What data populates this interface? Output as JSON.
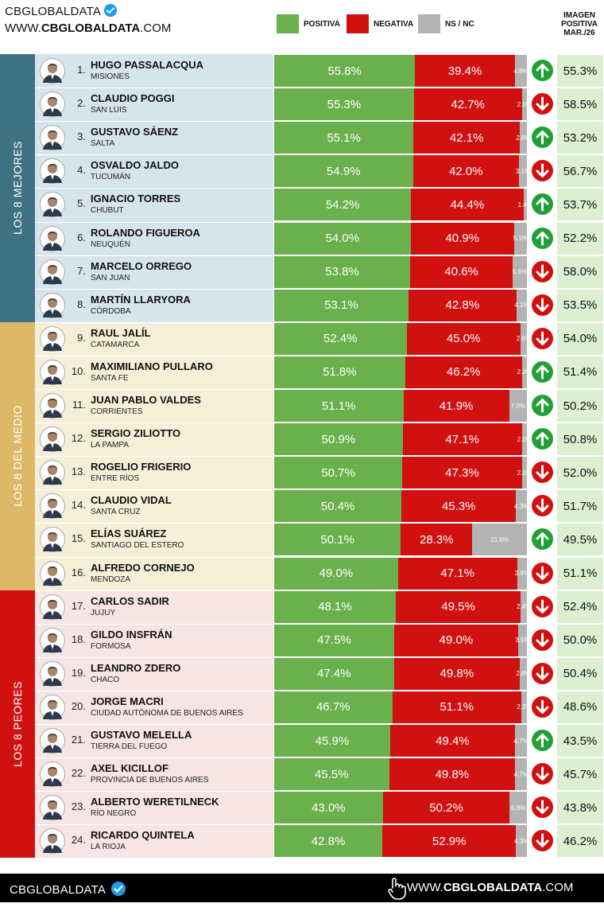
{
  "brand": {
    "name": "CBGLOBALDATA",
    "site_prefix": "WWW.",
    "site_bold": "CBGLOBALDATA",
    "site_suffix": ".COM"
  },
  "footer": {
    "name": "CBGLOBALDATA",
    "site_prefix": "WWW.",
    "site_bold": "CBGLOBALDATA",
    "site_suffix": ".COM"
  },
  "colors": {
    "positive": "#6ab04c",
    "negative": "#d11010",
    "nsnc": "#b3b3b3",
    "top_group": "#3e7282",
    "mid_group": "#ddb866",
    "bottom_group": "#d11010",
    "up": "#22a038",
    "down": "#d11010"
  },
  "chart_data": {
    "type": "bar",
    "stacked": true,
    "orientation": "horizontal",
    "legend": [
      "POSITIVA",
      "NEGATIVA",
      "NS / NC"
    ],
    "previous_header": [
      "IMAGEN",
      "POSITIVA",
      "MAR./26"
    ],
    "groups": [
      {
        "label": "LOS 8 MEJORES",
        "from": 1,
        "to": 8
      },
      {
        "label": "LOS 8 DEL MEDIO",
        "from": 9,
        "to": 16
      },
      {
        "label": "LOS 8 PEORES",
        "from": 17,
        "to": 24
      }
    ],
    "rows": [
      {
        "rank": "1.",
        "name": "HUGO PASSALACQUA",
        "province": "MISIONES",
        "positive": 55.8,
        "negative": 39.4,
        "nsnc": 4.8,
        "positive_label": "55.8%",
        "negative_label": "39.4%",
        "nsnc_label": "4.8%",
        "trend": "up",
        "previous": "55.3%"
      },
      {
        "rank": "2.",
        "name": "CLAUDIO POGGI",
        "province": "SAN LUIS",
        "positive": 55.3,
        "negative": 42.7,
        "nsnc": 2.0,
        "positive_label": "55.3%",
        "negative_label": "42.7%",
        "nsnc_label": "2.0%",
        "trend": "down",
        "previous": "58.5%"
      },
      {
        "rank": "3.",
        "name": "GUSTAVO SÁENZ",
        "province": "SALTA",
        "positive": 55.1,
        "negative": 42.1,
        "nsnc": 2.8,
        "positive_label": "55.1%",
        "negative_label": "42.1%",
        "nsnc_label": "2.8%",
        "trend": "up",
        "previous": "53.2%"
      },
      {
        "rank": "4.",
        "name": "OSVALDO JALDO",
        "province": "TUCUMÁN",
        "positive": 54.9,
        "negative": 42.0,
        "nsnc": 3.1,
        "positive_label": "54.9%",
        "negative_label": "42.0%",
        "nsnc_label": "3.1%",
        "trend": "down",
        "previous": "56.7%"
      },
      {
        "rank": "5.",
        "name": "IGNACIO TORRES",
        "province": "CHUBUT",
        "positive": 54.2,
        "negative": 44.4,
        "nsnc": 1.4,
        "positive_label": "54.2%",
        "negative_label": "44.4%",
        "nsnc_label": "1.4%",
        "trend": "up",
        "previous": "53.7%"
      },
      {
        "rank": "6.",
        "name": "ROLANDO FIGUEROA",
        "province": "NEUQUÉN",
        "positive": 54.0,
        "negative": 40.9,
        "nsnc": 5.1,
        "positive_label": "54.0%",
        "negative_label": "40.9%",
        "nsnc_label": "5.1%",
        "trend": "up",
        "previous": "52.2%"
      },
      {
        "rank": "7.",
        "name": "MARCELO ORREGO",
        "province": "SAN JUAN",
        "positive": 53.8,
        "negative": 40.6,
        "nsnc": 5.6,
        "positive_label": "53.8%",
        "negative_label": "40.6%",
        "nsnc_label": "5.6%",
        "trend": "down",
        "previous": "58.0%"
      },
      {
        "rank": "8.",
        "name": "MARTÍN LLARYORA",
        "province": "CÓRDOBA",
        "positive": 53.1,
        "negative": 42.8,
        "nsnc": 4.1,
        "positive_label": "53.1%",
        "negative_label": "42.8%",
        "nsnc_label": "4.1%",
        "trend": "down",
        "previous": "53.5%"
      },
      {
        "rank": "9.",
        "name": "RAUL JALÍL",
        "province": "CATAMARCA",
        "positive": 52.4,
        "negative": 45.0,
        "nsnc": 2.6,
        "positive_label": "52.4%",
        "negative_label": "45.0%",
        "nsnc_label": "2.6%",
        "trend": "down",
        "previous": "54.0%"
      },
      {
        "rank": "10.",
        "name": "MAXIMILIANO PULLARO",
        "province": "SANTA FE",
        "positive": 51.8,
        "negative": 46.2,
        "nsnc": 2.0,
        "positive_label": "51.8%",
        "negative_label": "46.2%",
        "nsnc_label": "2.0%",
        "trend": "up",
        "previous": "51.4%"
      },
      {
        "rank": "11.",
        "name": "JUAN PABLO VALDES",
        "province": "CORRIENTES",
        "positive": 51.1,
        "negative": 41.9,
        "nsnc": 7.0,
        "positive_label": "51.1%",
        "negative_label": "41.9%",
        "nsnc_label": "7.0%",
        "trend": "up",
        "previous": "50.2%"
      },
      {
        "rank": "12.",
        "name": "SERGIO ZILIOTTO",
        "province": "LA PAMPA",
        "positive": 50.9,
        "negative": 47.1,
        "nsnc": 2.0,
        "positive_label": "50.9%",
        "negative_label": "47.1%",
        "nsnc_label": "2.0%",
        "trend": "up",
        "previous": "50.8%"
      },
      {
        "rank": "13.",
        "name": "ROGELIO FRIGERIO",
        "province": "ENTRE RÍOS",
        "positive": 50.7,
        "negative": 47.3,
        "nsnc": 2.0,
        "positive_label": "50.7%",
        "negative_label": "47.3%",
        "nsnc_label": "2.0%",
        "trend": "down",
        "previous": "52.0%"
      },
      {
        "rank": "14.",
        "name": "CLAUDIO VIDAL",
        "province": "SANTA CRUZ",
        "positive": 50.4,
        "negative": 45.3,
        "nsnc": 4.3,
        "positive_label": "50.4%",
        "negative_label": "45.3%",
        "nsnc_label": "4.3%",
        "trend": "down",
        "previous": "51.7%"
      },
      {
        "rank": "15.",
        "name": "ELÍAS SUÁREZ",
        "province": "SANTIAGO DEL ESTERO",
        "positive": 50.1,
        "negative": 28.3,
        "nsnc": 21.6,
        "positive_label": "50.1%",
        "negative_label": "28.3%",
        "nsnc_label": "21.6%",
        "trend": "up",
        "previous": "49.5%"
      },
      {
        "rank": "16.",
        "name": "ALFREDO CORNEJO",
        "province": "MENDOZA",
        "positive": 49.0,
        "negative": 47.1,
        "nsnc": 3.9,
        "positive_label": "49.0%",
        "negative_label": "47.1%",
        "nsnc_label": "3.9%",
        "trend": "down",
        "previous": "51.1%"
      },
      {
        "rank": "17.",
        "name": "CARLOS SADIR",
        "province": "JUJUY",
        "positive": 48.1,
        "negative": 49.5,
        "nsnc": 2.4,
        "positive_label": "48.1%",
        "negative_label": "49.5%",
        "nsnc_label": "2.4%",
        "trend": "down",
        "previous": "52.4%"
      },
      {
        "rank": "18.",
        "name": "GILDO INSFRÁN",
        "province": "FORMOSA",
        "positive": 47.5,
        "negative": 49.0,
        "nsnc": 3.5,
        "positive_label": "47.5%",
        "negative_label": "49.0%",
        "nsnc_label": "3.5%",
        "trend": "down",
        "previous": "50.0%"
      },
      {
        "rank": "19.",
        "name": "LEANDRO ZDERO",
        "province": "CHACO",
        "positive": 47.4,
        "negative": 49.8,
        "nsnc": 2.8,
        "positive_label": "47.4%",
        "negative_label": "49.8%",
        "nsnc_label": "2.8%",
        "trend": "down",
        "previous": "50.4%"
      },
      {
        "rank": "20.",
        "name": "JORGE MACRI",
        "province": "CIUDAD AUTÓNOMA DE BUENOS AIRES",
        "positive": 46.7,
        "negative": 51.1,
        "nsnc": 2.2,
        "positive_label": "46.7%",
        "negative_label": "51.1%",
        "nsnc_label": "2.2%",
        "trend": "down",
        "previous": "48.6%"
      },
      {
        "rank": "21.",
        "name": "GUSTAVO MELELLA",
        "province": "TIERRA DEL FUEGO",
        "positive": 45.9,
        "negative": 49.4,
        "nsnc": 4.7,
        "positive_label": "45.9%",
        "negative_label": "49.4%",
        "nsnc_label": "4.7%",
        "trend": "up",
        "previous": "43.5%"
      },
      {
        "rank": "22.",
        "name": "AXEL KICILLOF",
        "province": "PROVINCIA DE BUENOS AIRES",
        "positive": 45.5,
        "negative": 49.8,
        "nsnc": 4.7,
        "positive_label": "45.5%",
        "negative_label": "49.8%",
        "nsnc_label": "4.7%",
        "trend": "down",
        "previous": "45.7%"
      },
      {
        "rank": "23.",
        "name": "ALBERTO WERETILNECK",
        "province": "RÍO NEGRO",
        "positive": 43.0,
        "negative": 50.2,
        "nsnc": 6.8,
        "positive_label": "43.0%",
        "negative_label": "50.2%",
        "nsnc_label": "6.8%",
        "trend": "down",
        "previous": "43.8%"
      },
      {
        "rank": "24.",
        "name": "RICARDO QUINTELA",
        "province": "LA RIOJA",
        "positive": 42.8,
        "negative": 52.9,
        "nsnc": 4.3,
        "positive_label": "42.8%",
        "negative_label": "52.9%",
        "nsnc_label": "4.3%",
        "trend": "down",
        "previous": "46.2%"
      }
    ]
  }
}
